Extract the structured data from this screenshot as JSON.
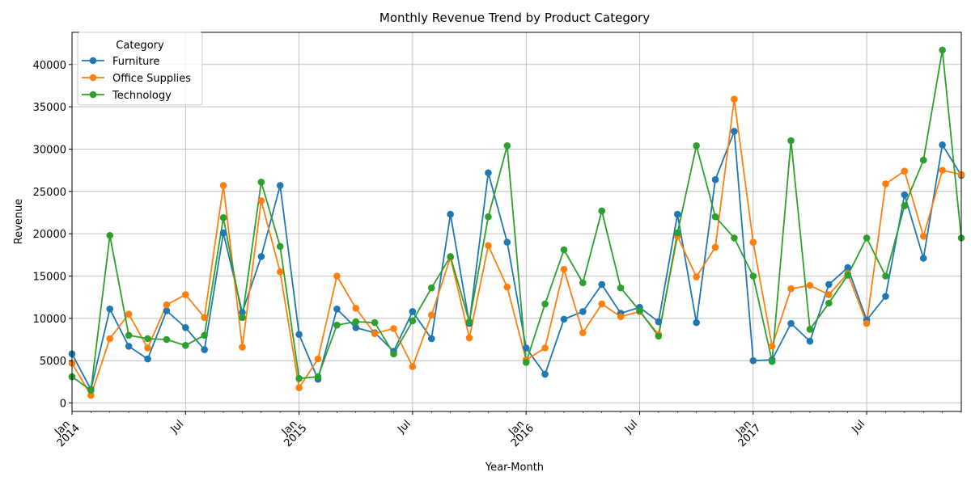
{
  "chart_data": {
    "type": "line",
    "title": "Monthly Revenue Trend by Product Category",
    "xlabel": "Year-Month",
    "ylabel": "Revenue",
    "ylim": [
      -1000,
      43800
    ],
    "yticks": [
      0,
      5000,
      10000,
      15000,
      20000,
      25000,
      30000,
      35000,
      40000
    ],
    "grid": true,
    "legend": {
      "title": "Category",
      "placement": "top-left"
    },
    "x_start": "2014-01",
    "x_end": "2017-12",
    "x_ticks": [
      {
        "month": "2014-01",
        "label": "Jan",
        "year": "2014",
        "major": true
      },
      {
        "month": "2014-07",
        "label": "Jul",
        "year": "",
        "major": false
      },
      {
        "month": "2015-01",
        "label": "Jan",
        "year": "2015",
        "major": true
      },
      {
        "month": "2015-07",
        "label": "Jul",
        "year": "",
        "major": false
      },
      {
        "month": "2016-01",
        "label": "Jan",
        "year": "2016",
        "major": true
      },
      {
        "month": "2016-07",
        "label": "Jul",
        "year": "",
        "major": false
      },
      {
        "month": "2017-01",
        "label": "Jan",
        "year": "2017",
        "major": true
      },
      {
        "month": "2017-07",
        "label": "Jul",
        "year": "",
        "major": false
      }
    ],
    "series": [
      {
        "name": "Furniture",
        "color": "#1f77b4",
        "values": [
          5800,
          1600,
          11100,
          6700,
          5200,
          10900,
          8900,
          6300,
          20100,
          10700,
          17300,
          25700,
          8100,
          2800,
          11100,
          8900,
          8300,
          6100,
          10800,
          7600,
          22300,
          9400,
          27200,
          19000,
          6500,
          3400,
          9900,
          10800,
          14000,
          10600,
          11300,
          9600,
          22300,
          9500,
          26400,
          32100,
          5000,
          5100,
          9400,
          7300,
          14000,
          16000,
          9800,
          12600,
          24600,
          17100,
          30500,
          26900
        ]
      },
      {
        "name": "Office Supplies",
        "color": "#ff7f0e",
        "values": [
          4700,
          900,
          7600,
          10500,
          6500,
          11600,
          12800,
          10100,
          25700,
          6600,
          23900,
          15500,
          1800,
          5200,
          15000,
          11200,
          8200,
          8800,
          4300,
          10400,
          17200,
          7700,
          18600,
          13700,
          5100,
          6500,
          15800,
          8300,
          11700,
          10200,
          10800,
          8100,
          19700,
          14900,
          18400,
          35900,
          19000,
          6700,
          13500,
          13900,
          12800,
          15300,
          9400,
          25900,
          27400,
          19700,
          27500,
          27000
        ]
      },
      {
        "name": "Technology",
        "color": "#2ca02c",
        "values": [
          3100,
          1500,
          19800,
          8000,
          7600,
          7500,
          6800,
          8000,
          21900,
          10100,
          26100,
          18500,
          2900,
          3100,
          9200,
          9600,
          9500,
          5800,
          9700,
          13600,
          17300,
          9600,
          22000,
          30400,
          4800,
          11700,
          18100,
          14200,
          22700,
          13600,
          10900,
          7900,
          20100,
          30400,
          22000,
          19500,
          15000,
          4900,
          31000,
          8700,
          11800,
          15100,
          19500,
          15000,
          23300,
          28700,
          41700,
          19500
        ]
      }
    ]
  }
}
